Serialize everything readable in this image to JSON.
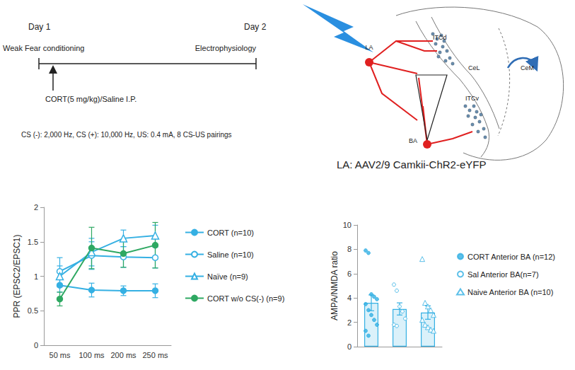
{
  "timeline": {
    "day1": "Day 1",
    "day2": "Day 2",
    "event_left": "Weak Fear conditioning",
    "event_right": "Electrophysiology",
    "injection": "CORT(5 mg/kg)/Saline I.P.",
    "protocol": "CS (-): 2,000 Hz, CS (+): 10,000 Hz, US: 0.4 mA, 8 CS-US pairings"
  },
  "diagram": {
    "labels": {
      "la": "LA",
      "ba": "BA",
      "itcd": "ITCd",
      "itcv": "ITCv",
      "cel": "CeL",
      "cem": "CeM"
    },
    "caption": "LA: AAV2/9 Camkii-ChR2-eYFP"
  },
  "chart_data": [
    {
      "type": "line",
      "ylabel": "PPR (EPSC2/EPSC1)",
      "categories": [
        "50 ms",
        "100 ms",
        "200 ms",
        "250 ms"
      ],
      "ylim": [
        0,
        2
      ],
      "yticks": [
        0,
        0.5,
        1,
        1.5,
        2
      ],
      "grid": false,
      "legend": "right",
      "series": [
        {
          "name": "CORT (n=10)",
          "color": "#35b0e3",
          "marker": "circle",
          "values": [
            0.87,
            0.8,
            0.79,
            0.79
          ],
          "errors": [
            0.1,
            0.1,
            0.07,
            0.1
          ]
        },
        {
          "name": "Saline (n=10)",
          "color": "#35b0e3",
          "marker": "open_circle",
          "values": [
            1.07,
            1.3,
            1.28,
            1.27
          ],
          "errors": [
            0.2,
            0.2,
            0.15,
            0.15
          ]
        },
        {
          "name": "Naïve (n=9)",
          "color": "#35b0e3",
          "marker": "open_triangle",
          "values": [
            1.0,
            1.35,
            1.55,
            1.59
          ],
          "errors": [
            0.15,
            0.2,
            0.12,
            0.15
          ]
        },
        {
          "name": "CORT w/o CS(-) (n=9)",
          "color": "#2ea862",
          "marker": "circle",
          "values": [
            0.67,
            1.41,
            1.33,
            1.45
          ],
          "errors": [
            0.1,
            0.3,
            0.2,
            0.33
          ]
        }
      ]
    },
    {
      "type": "bar",
      "ylabel": "AMPA/NMDA ratio",
      "categories": [
        null,
        null,
        null
      ],
      "values": [
        3.6,
        3.1,
        2.8
      ],
      "errors": [
        0.65,
        0.5,
        0.55
      ],
      "color": "#35b0e3",
      "ylim": [
        0,
        10
      ],
      "yticks": [
        0,
        2,
        4,
        6,
        8,
        10
      ],
      "grid": false,
      "tick_labels": "y",
      "legend": "right",
      "points": [
        {
          "name": "CORT Anterior BA (n=12)",
          "marker": "circle",
          "values": [
            7.9,
            7.7,
            4.3,
            4.1,
            3.9,
            3.5,
            3.0,
            2.6,
            2.2,
            1.8,
            1.3,
            0.9
          ]
        },
        {
          "name": "Sal Anterior BA(n=7)",
          "marker": "open_circle",
          "values": [
            5.1,
            4.6,
            3.3,
            2.9,
            2.3,
            1.8,
            1.7
          ]
        },
        {
          "name": "Naive Anterior BA (n=10)",
          "marker": "open_triangle",
          "values": [
            7.2,
            3.6,
            3.3,
            3.0,
            2.6,
            2.2,
            1.8,
            1.6,
            1.4,
            1.3
          ]
        }
      ]
    }
  ]
}
